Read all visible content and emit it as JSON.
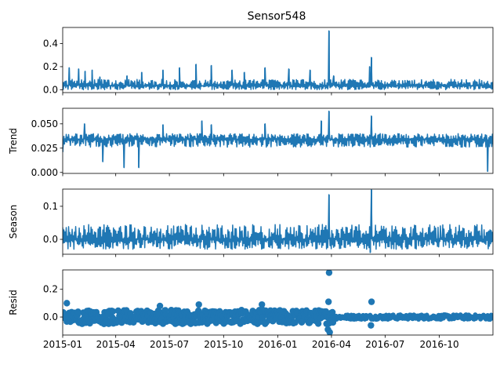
{
  "chart_data": {
    "type": "line",
    "title": "Sensor548",
    "x_range": [
      "2015-01-01",
      "2016-12-31"
    ],
    "x_tick_labels": [
      "2015-01",
      "2015-04",
      "2015-07",
      "2015-10",
      "2016-01",
      "2016-04",
      "2016-07",
      "2016-10"
    ],
    "series_color": "#1f77b4",
    "panels": [
      {
        "name": "observed",
        "ylabel": "",
        "style": "line",
        "ylim": [
          -0.025,
          0.54
        ],
        "yticks": [
          0.0,
          0.2,
          0.4
        ],
        "ytick_labels": [
          "0.0",
          "0.2",
          "0.4"
        ],
        "baseline": 0.035,
        "noise_band": [
          0.0,
          0.09
        ],
        "spikes": [
          {
            "date": "2015-01-12",
            "value": 0.19
          },
          {
            "date": "2015-01-28",
            "value": 0.18
          },
          {
            "date": "2015-02-08",
            "value": 0.16
          },
          {
            "date": "2015-02-20",
            "value": 0.17
          },
          {
            "date": "2015-03-05",
            "value": 0.11
          },
          {
            "date": "2015-04-20",
            "value": 0.12
          },
          {
            "date": "2015-05-15",
            "value": 0.15
          },
          {
            "date": "2015-06-20",
            "value": 0.17
          },
          {
            "date": "2015-07-18",
            "value": 0.19
          },
          {
            "date": "2015-08-15",
            "value": 0.22
          },
          {
            "date": "2015-09-10",
            "value": 0.21
          },
          {
            "date": "2015-10-15",
            "value": 0.17
          },
          {
            "date": "2015-11-05",
            "value": 0.15
          },
          {
            "date": "2015-12-10",
            "value": 0.19
          },
          {
            "date": "2016-01-20",
            "value": 0.18
          },
          {
            "date": "2016-02-25",
            "value": 0.17
          },
          {
            "date": "2016-03-28",
            "value": 0.51
          },
          {
            "date": "2016-04-05",
            "value": 0.12
          },
          {
            "date": "2016-06-08",
            "value": 0.28
          },
          {
            "date": "2016-06-05",
            "value": 0.2
          },
          {
            "date": "2016-11-20",
            "value": 0.06
          }
        ]
      },
      {
        "name": "trend",
        "ylabel": "Trend",
        "style": "line",
        "ylim": [
          -0.001,
          0.066
        ],
        "yticks": [
          0.0,
          0.025,
          0.05
        ],
        "ytick_labels": [
          "0.000",
          "0.025",
          "0.050"
        ],
        "baseline": 0.034,
        "noise_band": [
          0.026,
          0.04
        ],
        "spikes": [
          {
            "date": "2015-01-01",
            "value": 0.021
          },
          {
            "date": "2015-02-07",
            "value": 0.05
          },
          {
            "date": "2015-03-10",
            "value": 0.011
          },
          {
            "date": "2015-04-15",
            "value": 0.005
          },
          {
            "date": "2015-05-10",
            "value": 0.005
          },
          {
            "date": "2015-06-20",
            "value": 0.049
          },
          {
            "date": "2015-08-25",
            "value": 0.053
          },
          {
            "date": "2015-09-10",
            "value": 0.049
          },
          {
            "date": "2015-12-10",
            "value": 0.05
          },
          {
            "date": "2016-03-15",
            "value": 0.053
          },
          {
            "date": "2016-03-28",
            "value": 0.063
          },
          {
            "date": "2016-06-08",
            "value": 0.058
          },
          {
            "date": "2016-12-22",
            "value": 0.001
          }
        ]
      },
      {
        "name": "seasonal",
        "ylabel": "Season",
        "style": "line",
        "ylim": [
          -0.045,
          0.152
        ],
        "yticks": [
          0.0,
          0.1
        ],
        "ytick_labels": [
          "0.0",
          "0.1"
        ],
        "baseline": 0.0,
        "noise_band": [
          -0.03,
          0.045
        ],
        "spikes": [
          {
            "date": "2016-03-28",
            "value": 0.135
          },
          {
            "date": "2016-06-08",
            "value": 0.15
          },
          {
            "date": "2016-06-06",
            "value": -0.04
          }
        ]
      },
      {
        "name": "resid",
        "ylabel": "Resid",
        "style": "scatter",
        "ylim": [
          -0.13,
          0.34
        ],
        "yticks": [
          0.0,
          0.2
        ],
        "ytick_labels": [
          "0.0",
          "0.2"
        ],
        "baseline": 0.0,
        "noise_band": [
          -0.05,
          0.05
        ],
        "spikes": [
          {
            "date": "2015-01-08",
            "value": 0.1
          },
          {
            "date": "2015-06-15",
            "value": 0.08
          },
          {
            "date": "2015-08-20",
            "value": 0.09
          },
          {
            "date": "2015-12-05",
            "value": 0.09
          },
          {
            "date": "2016-03-28",
            "value": 0.32
          },
          {
            "date": "2016-03-27",
            "value": 0.11
          },
          {
            "date": "2016-03-26",
            "value": -0.09
          },
          {
            "date": "2016-03-29",
            "value": -0.11
          },
          {
            "date": "2016-06-08",
            "value": 0.11
          },
          {
            "date": "2016-06-07",
            "value": -0.06
          }
        ]
      }
    ]
  }
}
